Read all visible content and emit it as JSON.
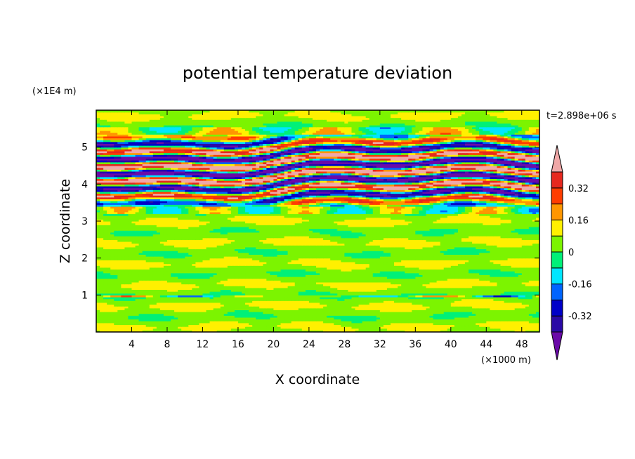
{
  "chart_data": {
    "type": "heatmap",
    "title": "potential temperature deviation",
    "xlabel": "X coordinate",
    "ylabel": "Z coordinate",
    "x_unit": "(×1000 m)",
    "y_unit": "(×1E4 m)",
    "time_label": "t=2.898e+06 s",
    "xlim": [
      0,
      50
    ],
    "ylim": [
      0,
      6
    ],
    "x_ticks": [
      4,
      8,
      12,
      16,
      20,
      24,
      28,
      32,
      36,
      40,
      44,
      48
    ],
    "x_tick_labels": [
      "4",
      "8",
      "12",
      "16",
      "20",
      "24",
      "28",
      "32",
      "36",
      "40",
      "44",
      "48"
    ],
    "y_ticks": [
      1,
      2,
      3,
      4,
      5
    ],
    "y_tick_labels": [
      "1",
      "2",
      "3",
      "4",
      "5"
    ],
    "colorbar": {
      "levels": [
        -0.4,
        -0.32,
        -0.24,
        -0.16,
        -0.08,
        0,
        0.08,
        0.16,
        0.24,
        0.32,
        0.4
      ],
      "colors": [
        "#6a0aa8",
        "#2a0aa6",
        "#0000c8",
        "#0064ff",
        "#00e6ff",
        "#00f078",
        "#7cf400",
        "#fff000",
        "#ff9600",
        "#ff3c00",
        "#e6281e",
        "#f0a8a8"
      ],
      "tick_values": [
        0.32,
        0.16,
        0,
        -0.16,
        -0.32
      ],
      "tick_labels": [
        "0.32",
        "0.16",
        "0",
        "-0.16",
        "-0.32"
      ]
    },
    "regions": [
      {
        "z_range": [
          0,
          3.4
        ],
        "description_level": "near 0 (alternating 0 and 0.08 bands)"
      },
      {
        "z_range": [
          3.4,
          5.3
        ],
        "description_level": "strong alternating layers from -0.40 to +0.40"
      },
      {
        "z_range": [
          5.3,
          6
        ],
        "description_level": "near 0"
      }
    ]
  }
}
